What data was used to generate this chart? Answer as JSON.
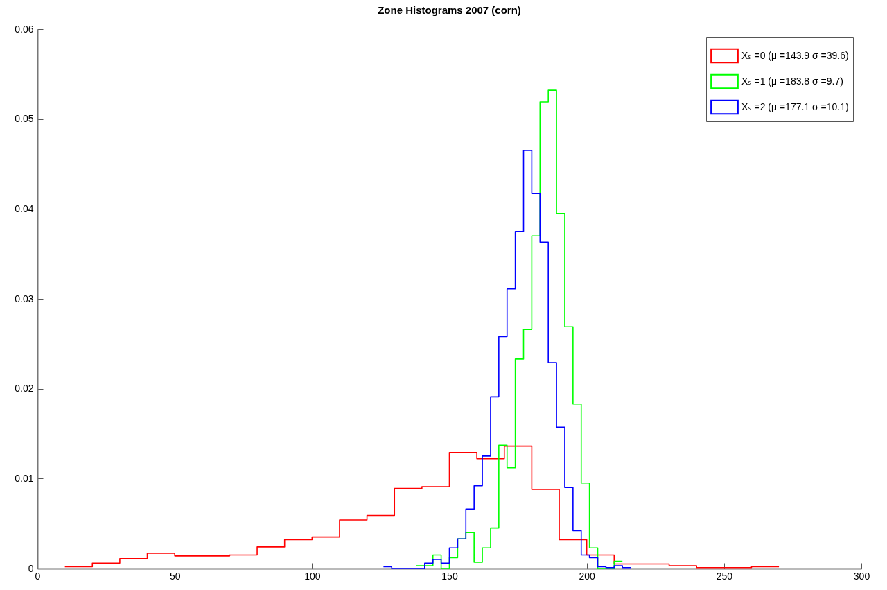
{
  "chart_data": {
    "type": "step",
    "title": "Zone Histograms 2007 (corn)",
    "xlim": [
      0,
      300
    ],
    "xticks": [
      0,
      50,
      100,
      150,
      200,
      250,
      300
    ],
    "ylim": [
      0,
      0.06
    ],
    "yticks": [
      0,
      0.01,
      0.02,
      0.03,
      0.04,
      0.05,
      0.06
    ],
    "grid": false,
    "legend": "top right",
    "marker": "none",
    "series": [
      {
        "name": "Xₛ =0 (μ =143.9 σ =39.6)",
        "color": "#ff0000",
        "x": [
          10,
          20,
          30,
          40,
          50,
          60,
          70,
          80,
          90,
          100,
          110,
          120,
          130,
          140,
          150,
          160,
          170,
          180,
          190,
          200,
          210,
          220,
          230,
          240,
          250,
          260,
          270
        ],
        "values": [
          0.0002,
          0.0006,
          0.0011,
          0.0017,
          0.0014,
          0.0014,
          0.0015,
          0.0024,
          0.0032,
          0.0035,
          0.0054,
          0.0059,
          0.0089,
          0.0091,
          0.0129,
          0.0122,
          0.0136,
          0.0088,
          0.0032,
          0.0015,
          0.0005,
          0.0005,
          0.0003,
          0.0001,
          0.0001,
          0.0002,
          0.0002
        ]
      },
      {
        "name": "Xₛ =1 (μ =183.8 σ =9.7)",
        "color": "#00ff00",
        "x": [
          138,
          141,
          144,
          147,
          150,
          153,
          156,
          159,
          162,
          165,
          168,
          171,
          174,
          177,
          180,
          183,
          186,
          189,
          192,
          195,
          198,
          201,
          204,
          207,
          210,
          213
        ],
        "values": [
          0.0003,
          0.0003,
          0.0015,
          0,
          0.0012,
          0.0033,
          0.004,
          0.0007,
          0.0023,
          0.0045,
          0.0137,
          0.0112,
          0.0233,
          0.0266,
          0.037,
          0.0519,
          0.0532,
          0.0395,
          0.0269,
          0.0183,
          0.0095,
          0.0023,
          0,
          0,
          0.0008,
          0.0008
        ]
      },
      {
        "name": "Xₛ =2 (μ =177.1 σ =10.1)",
        "color": "#0000ff",
        "x": [
          126,
          129,
          132,
          135,
          138,
          141,
          144,
          147,
          150,
          153,
          156,
          159,
          162,
          165,
          168,
          171,
          174,
          177,
          180,
          183,
          186,
          189,
          192,
          195,
          198,
          201,
          204,
          207,
          210,
          213,
          216
        ],
        "values": [
          0.0002,
          0,
          0,
          0,
          0,
          0.0006,
          0.001,
          0.0006,
          0.0023,
          0.0033,
          0.0066,
          0.0092,
          0.0125,
          0.0191,
          0.0258,
          0.0311,
          0.0375,
          0.0465,
          0.0417,
          0.0363,
          0.0229,
          0.0157,
          0.009,
          0.0042,
          0.0015,
          0.0012,
          0.0002,
          0.0001,
          0.0003,
          0.0001,
          0.0001
        ]
      }
    ]
  }
}
